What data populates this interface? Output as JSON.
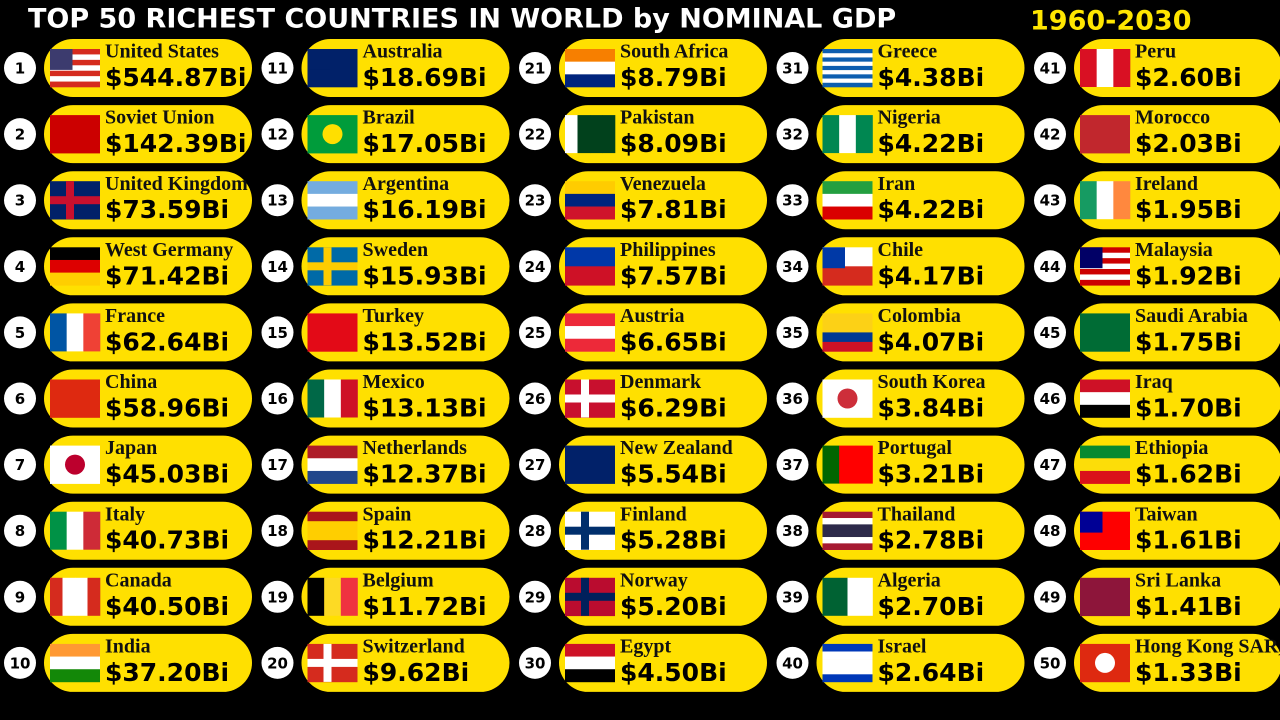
{
  "header": {
    "title": "TOP 50 RICHEST COUNTRIES IN WORLD by NOMINAL GDP",
    "years": "1960-2030"
  },
  "entries": [
    {
      "rank": 1,
      "name": "United States",
      "gdp": "$544.87Bi"
    },
    {
      "rank": 2,
      "name": "Soviet Union",
      "gdp": "$142.39Bi"
    },
    {
      "rank": 3,
      "name": "United Kingdom",
      "gdp": "$73.59Bi"
    },
    {
      "rank": 4,
      "name": "West Germany",
      "gdp": "$71.42Bi"
    },
    {
      "rank": 5,
      "name": "France",
      "gdp": "$62.64Bi"
    },
    {
      "rank": 6,
      "name": "China",
      "gdp": "$58.96Bi"
    },
    {
      "rank": 7,
      "name": "Japan",
      "gdp": "$45.03Bi"
    },
    {
      "rank": 8,
      "name": "Italy",
      "gdp": "$40.73Bi"
    },
    {
      "rank": 9,
      "name": "Canada",
      "gdp": "$40.50Bi"
    },
    {
      "rank": 10,
      "name": "India",
      "gdp": "$37.20Bi"
    },
    {
      "rank": 11,
      "name": "Australia",
      "gdp": "$18.69Bi"
    },
    {
      "rank": 12,
      "name": "Brazil",
      "gdp": "$17.05Bi"
    },
    {
      "rank": 13,
      "name": "Argentina",
      "gdp": "$16.19Bi"
    },
    {
      "rank": 14,
      "name": "Sweden",
      "gdp": "$15.93Bi"
    },
    {
      "rank": 15,
      "name": "Turkey",
      "gdp": "$13.52Bi"
    },
    {
      "rank": 16,
      "name": "Mexico",
      "gdp": "$13.13Bi"
    },
    {
      "rank": 17,
      "name": "Netherlands",
      "gdp": "$12.37Bi"
    },
    {
      "rank": 18,
      "name": "Spain",
      "gdp": "$12.21Bi"
    },
    {
      "rank": 19,
      "name": "Belgium",
      "gdp": "$11.72Bi"
    },
    {
      "rank": 20,
      "name": "Switzerland",
      "gdp": "$9.62Bi"
    },
    {
      "rank": 21,
      "name": "South Africa",
      "gdp": "$8.79Bi"
    },
    {
      "rank": 22,
      "name": "Pakistan",
      "gdp": "$8.09Bi"
    },
    {
      "rank": 23,
      "name": "Venezuela",
      "gdp": "$7.81Bi"
    },
    {
      "rank": 24,
      "name": "Philippines",
      "gdp": "$7.57Bi"
    },
    {
      "rank": 25,
      "name": "Austria",
      "gdp": "$6.65Bi"
    },
    {
      "rank": 26,
      "name": "Denmark",
      "gdp": "$6.29Bi"
    },
    {
      "rank": 27,
      "name": "New Zealand",
      "gdp": "$5.54Bi"
    },
    {
      "rank": 28,
      "name": "Finland",
      "gdp": "$5.28Bi"
    },
    {
      "rank": 29,
      "name": "Norway",
      "gdp": "$5.20Bi"
    },
    {
      "rank": 30,
      "name": "Egypt",
      "gdp": "$4.50Bi"
    },
    {
      "rank": 31,
      "name": "Greece",
      "gdp": "$4.38Bi"
    },
    {
      "rank": 32,
      "name": "Nigeria",
      "gdp": "$4.22Bi"
    },
    {
      "rank": 33,
      "name": "Iran",
      "gdp": "$4.22Bi"
    },
    {
      "rank": 34,
      "name": "Chile",
      "gdp": "$4.17Bi"
    },
    {
      "rank": 35,
      "name": "Colombia",
      "gdp": "$4.07Bi"
    },
    {
      "rank": 36,
      "name": "South Korea",
      "gdp": "$3.84Bi"
    },
    {
      "rank": 37,
      "name": "Portugal",
      "gdp": "$3.21Bi"
    },
    {
      "rank": 38,
      "name": "Thailand",
      "gdp": "$2.78Bi"
    },
    {
      "rank": 39,
      "name": "Algeria",
      "gdp": "$2.70Bi"
    },
    {
      "rank": 40,
      "name": "Israel",
      "gdp": "$2.64Bi"
    },
    {
      "rank": 41,
      "name": "Peru",
      "gdp": "$2.60Bi"
    },
    {
      "rank": 42,
      "name": "Morocco",
      "gdp": "$2.03Bi"
    },
    {
      "rank": 43,
      "name": "Ireland",
      "gdp": "$1.95Bi"
    },
    {
      "rank": 44,
      "name": "Malaysia",
      "gdp": "$1.92Bi"
    },
    {
      "rank": 45,
      "name": "Saudi Arabia",
      "gdp": "$1.75Bi"
    },
    {
      "rank": 46,
      "name": "Iraq",
      "gdp": "$1.70Bi"
    },
    {
      "rank": 47,
      "name": "Ethiopia",
      "gdp": "$1.62Bi"
    },
    {
      "rank": 48,
      "name": "Taiwan",
      "gdp": "$1.61Bi"
    },
    {
      "rank": 49,
      "name": "Sri Lanka",
      "gdp": "$1.41Bi"
    },
    {
      "rank": 50,
      "name": "Hong Kong SAR, China",
      "gdp": "$1.33Bi"
    }
  ]
}
